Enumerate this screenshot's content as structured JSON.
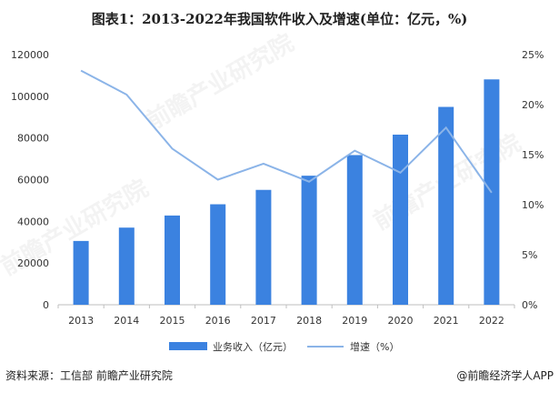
{
  "title": "图表1：2013-2022年我国软件收入及增速(单位：亿元，%)",
  "source": "资料来源：工信部 前瞻产业研究院",
  "brand": "@前瞻经济学人APP",
  "watermark": "前瞻产业研究院",
  "colors": {
    "bar": "#3b82e0",
    "line": "#8bb4e8",
    "axis": "#bfbfbf",
    "text": "#333333"
  },
  "chart_data": {
    "type": "bar",
    "categories": [
      "2013",
      "2014",
      "2015",
      "2016",
      "2017",
      "2018",
      "2019",
      "2020",
      "2021",
      "2022"
    ],
    "series": [
      {
        "name": "业务收入（亿元）",
        "type": "bar",
        "axis": "left",
        "values": [
          30600,
          37000,
          42800,
          48200,
          55100,
          61900,
          71800,
          81600,
          94900,
          108100
        ]
      },
      {
        "name": "增速（%）",
        "type": "line",
        "axis": "right",
        "values": [
          23.4,
          21.0,
          15.6,
          12.5,
          14.1,
          12.3,
          15.4,
          13.2,
          17.7,
          11.2
        ]
      }
    ],
    "yleft": {
      "min": 0,
      "max": 120000,
      "ticks": [
        "0",
        "20000",
        "40000",
        "60000",
        "80000",
        "100000",
        "120000"
      ]
    },
    "yright": {
      "min": 0,
      "max": 25,
      "ticks": [
        "0%",
        "5%",
        "10%",
        "15%",
        "20%",
        "25%"
      ]
    },
    "legend": [
      "业务收入（亿元）",
      "增速（%）"
    ],
    "legend_position": "bottom",
    "grid": false
  }
}
